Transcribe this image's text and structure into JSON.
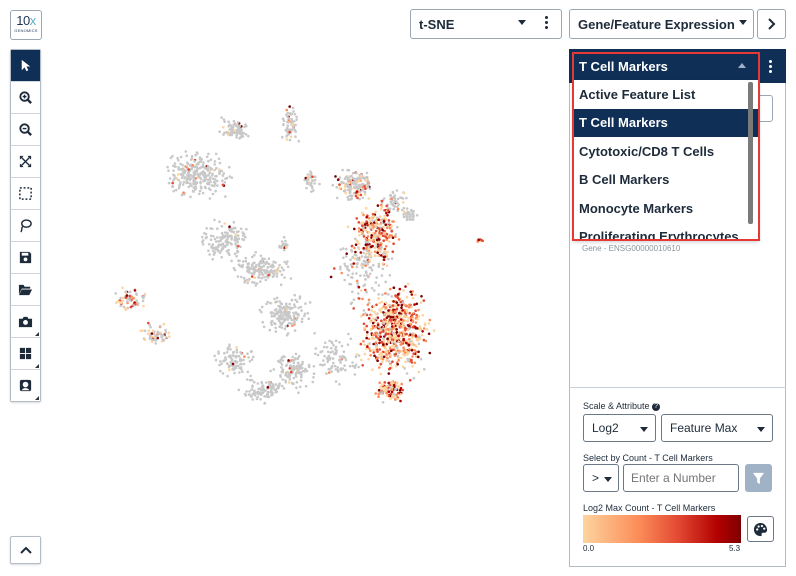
{
  "logo": {
    "top": "10x",
    "bottom": "GENOMICS"
  },
  "toolbar": {
    "items": [
      {
        "name": "select-arrow-icon",
        "active": true
      },
      {
        "name": "zoom-in-icon"
      },
      {
        "name": "zoom-out-icon"
      },
      {
        "name": "fit-view-icon"
      },
      {
        "name": "box-select-icon"
      },
      {
        "name": "lasso-icon"
      },
      {
        "name": "save-icon"
      },
      {
        "name": "open-folder-icon"
      },
      {
        "name": "camera-icon"
      },
      {
        "name": "layout-grid-icon"
      },
      {
        "name": "badge-icon"
      }
    ]
  },
  "projection": {
    "value": "t-SNE"
  },
  "mode": {
    "value": "Gene/Feature Expression"
  },
  "feature_list": {
    "selected": "T Cell Markers",
    "options": [
      "Active Feature List",
      "T Cell Markers",
      "Cytotoxic/CD8 T Cells",
      "B Cell Markers",
      "Monocyte Markers",
      "Proliferating Erythrocytes"
    ]
  },
  "gene_subtitle": "Gene - ENSG00000010610",
  "scale": {
    "label": "Scale & Attribute",
    "scale_value": "Log2",
    "attribute_value": "Feature Max"
  },
  "count_filter": {
    "label": "Select by Count - T Cell Markers",
    "operator": ">",
    "placeholder": "Enter a Number"
  },
  "colorbar": {
    "label": "Log2 Max Count - T Cell Markers",
    "min": "0.0",
    "max": "5.3",
    "colors": [
      "#fdd49e",
      "#fc8d59",
      "#e34a33",
      "#b30000",
      "#7f0000"
    ]
  }
}
